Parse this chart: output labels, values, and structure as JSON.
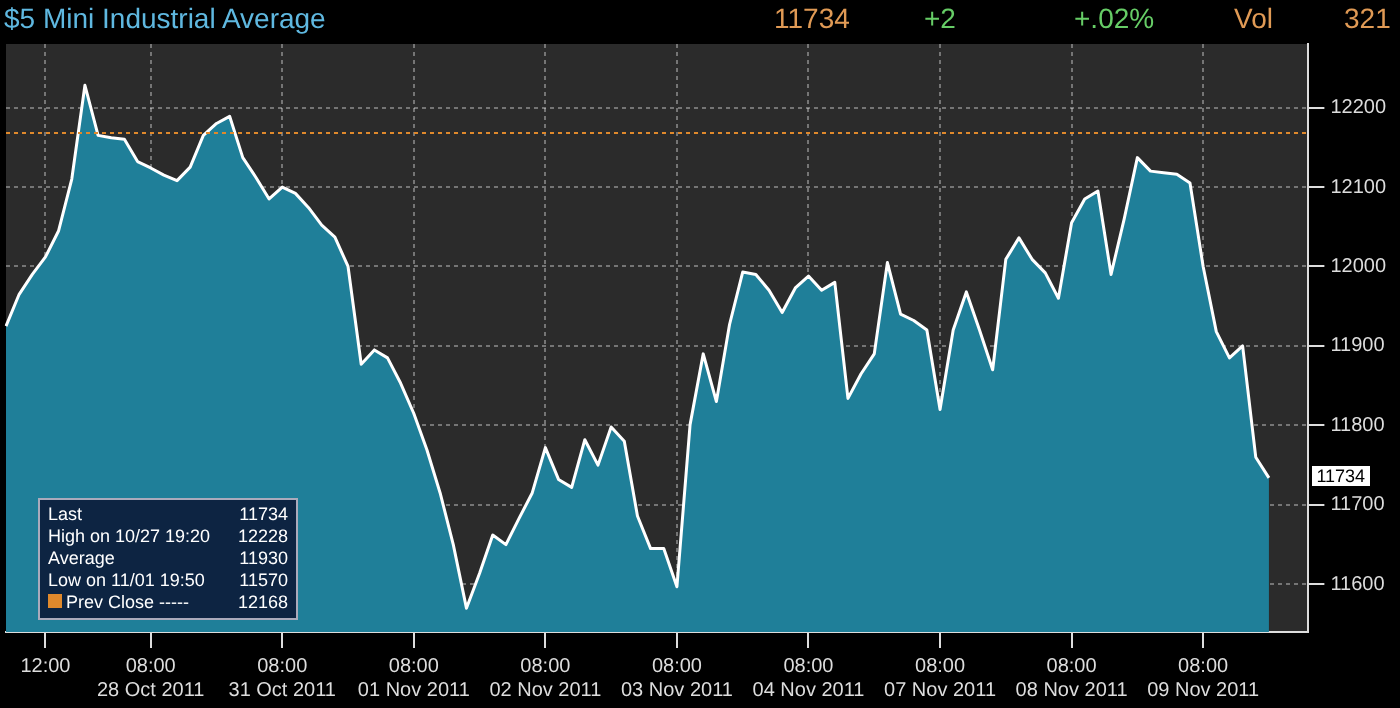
{
  "chart_data": {
    "type": "area",
    "title": "$5 Mini Industrial Average",
    "annotations": [
      "11734",
      "+2",
      "+.02%",
      "Vol",
      "321",
      "Last 11734",
      "High on 10/27 19:20 12228",
      "Average 11930",
      "Low on 11/01 19:50 11570",
      "Prev Close ----- 12168",
      {
        "text": "11734",
        "y": 11734
      }
    ],
    "categories": [
      null,
      null,
      null,
      "12:00",
      null,
      null,
      null,
      null,
      null,
      null,
      null,
      "08:00\n28 Oct 2011",
      null,
      null,
      null,
      null,
      null,
      null,
      null,
      null,
      null,
      "08:00\n31 Oct 2011",
      null,
      null,
      null,
      null,
      null,
      null,
      null,
      null,
      null,
      "08:00\n01 Nov 2011",
      null,
      null,
      null,
      null,
      null,
      null,
      null,
      null,
      null,
      "08:00\n02 Nov 2011",
      null,
      null,
      null,
      null,
      null,
      null,
      null,
      null,
      null,
      "08:00\n03 Nov 2011",
      null,
      null,
      null,
      null,
      null,
      null,
      null,
      null,
      null,
      "08:00\n04 Nov 2011",
      null,
      null,
      null,
      null,
      null,
      null,
      null,
      null,
      null,
      "08:00\n07 Nov 2011",
      null,
      null,
      null,
      null,
      null,
      null,
      null,
      null,
      null,
      "08:00\n08 Nov 2011",
      null,
      null,
      null,
      null,
      null,
      null,
      null,
      null,
      null,
      "08:00\n09 Nov 2011",
      null,
      null,
      null,
      null,
      null,
      null,
      null,
      null
    ],
    "series": [
      {
        "color": "#1f7f99",
        "values": [
          11925,
          11965,
          11990,
          12012,
          12045,
          12110,
          12228,
          12165,
          12162,
          12160,
          12132,
          12124,
          12115,
          12108,
          12125,
          12165,
          12180,
          12189,
          12137,
          12112,
          12085,
          12100,
          12092,
          12074,
          12052,
          12037,
          12000,
          11877,
          11895,
          11885,
          11853,
          11815,
          11769,
          11715,
          11650,
          11570,
          11614,
          11662,
          11650,
          11683,
          11715,
          11772,
          11732,
          11722,
          11782,
          11750,
          11798,
          11780,
          11686,
          11645,
          11645,
          11597,
          11801,
          11890,
          11830,
          11927,
          11993,
          11990,
          11970,
          11942,
          11973,
          11988,
          11970,
          11980,
          11834,
          11865,
          11890,
          12005,
          11940,
          11932,
          11920,
          11820,
          11920,
          11968,
          11920,
          11870,
          12009,
          12036,
          12009,
          11992,
          11960,
          12055,
          12085,
          12095,
          11990,
          12060,
          12137,
          12120,
          12118,
          12116,
          12105,
          12000,
          11918,
          11885,
          11900,
          11760,
          11734,
          null,
          null,
          null
        ]
      }
    ],
    "ylim": [
      11540,
      12280
    ],
    "yticks": [
      11600,
      11700,
      11800,
      11900,
      12000,
      12100,
      12200
    ],
    "ref_lines": [
      {
        "axis": "y",
        "value": 12168,
        "color": "#e0892c",
        "line_style": "dotted"
      }
    ],
    "grid": true,
    "legend": false
  }
}
